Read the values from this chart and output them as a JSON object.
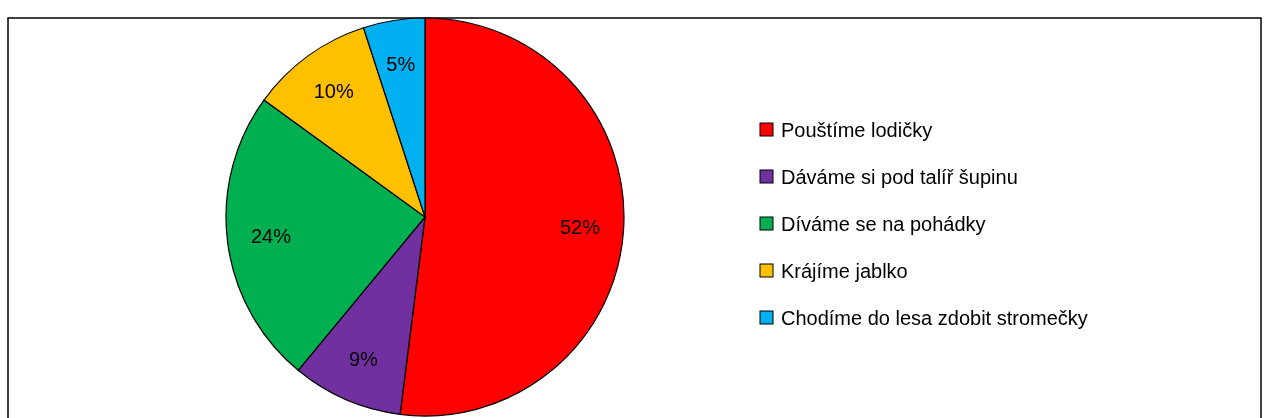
{
  "chart_data": {
    "type": "pie",
    "categories": [
      "Pouštíme lodičky",
      "Dáváme si pod talíř šupinu",
      "Díváme se na pohádky",
      "Krájíme jablko",
      "Chodíme do lesa zdobit stromečky"
    ],
    "values": [
      52,
      9,
      24,
      10,
      5
    ],
    "colors": [
      "#ff0000",
      "#7030a0",
      "#00b050",
      "#ffc000",
      "#00b0f0"
    ],
    "value_labels": [
      "52%",
      "9%",
      "24%",
      "10%",
      "5%"
    ],
    "legend": "right"
  }
}
